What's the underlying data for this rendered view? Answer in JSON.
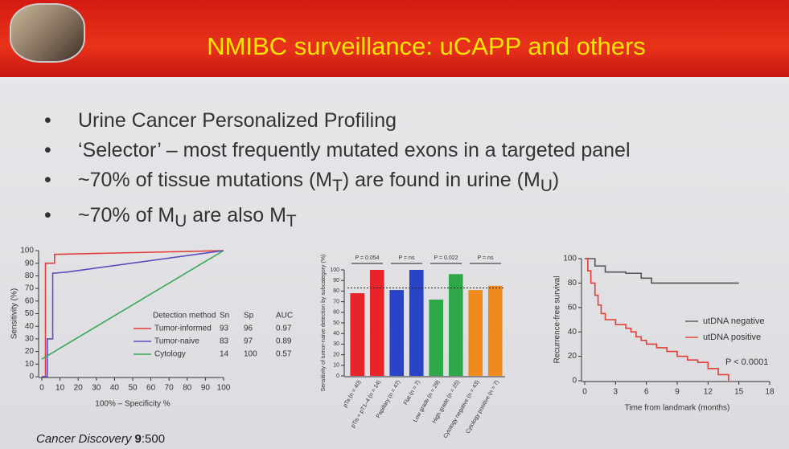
{
  "header": {
    "title": "NMIBC surveillance: uCAPP and others"
  },
  "bullets": [
    [
      "Urine Cancer Personalized Profiling"
    ],
    [
      "‘Selector’ – most frequently mutated exons in a targeted panel"
    ],
    [
      "~70% of tissue mutations (M",
      {
        "sub": "T"
      },
      ") are found in urine (M",
      {
        "sub": "U"
      },
      ")"
    ],
    [
      "~70% of M",
      {
        "sub": "U"
      },
      " are also M",
      {
        "sub": "T"
      }
    ]
  ],
  "footer": {
    "journal": "Cancer Discovery",
    "volume": "9",
    "page": ":500"
  },
  "chart_data": [
    {
      "type": "line",
      "xlabel": "100% – Specificity %",
      "ylabel": "Sensitivity (%)",
      "xlim": [
        0,
        100
      ],
      "ylim": [
        0,
        100
      ],
      "xticks": [
        0,
        10,
        20,
        30,
        40,
        50,
        60,
        70,
        80,
        90,
        100
      ],
      "yticks": [
        0,
        10,
        20,
        30,
        40,
        50,
        60,
        70,
        80,
        90,
        100
      ],
      "legend_title": "Detection method",
      "columns": [
        "Sn",
        "Sp",
        "AUC"
      ],
      "legend": "lower right",
      "series": [
        {
          "name": "Tumor-informed",
          "color": "#e0403a",
          "x": [
            0,
            2,
            2,
            7,
            7,
            100
          ],
          "values": [
            0,
            0,
            90,
            90,
            97,
            100
          ],
          "sn": 93,
          "sp": 96,
          "auc": 0.97
        },
        {
          "name": "Tumor-naive",
          "color": "#5a4fc0",
          "x": [
            0,
            3,
            3,
            6,
            6,
            14,
            100
          ],
          "values": [
            0,
            0,
            30,
            30,
            82,
            83,
            100
          ],
          "sn": 83,
          "sp": 97,
          "auc": 0.89
        },
        {
          "name": "Cytology",
          "color": "#3aa65a",
          "x": [
            0,
            100
          ],
          "values": [
            14,
            100
          ],
          "sn": 14,
          "sp": 100,
          "auc": 0.57
        }
      ]
    },
    {
      "type": "bar",
      "ylabel": "Sensitivity of tumor-naive detection by subcategory (%)",
      "ylim": [
        0,
        100
      ],
      "yticks": [
        0,
        10,
        20,
        30,
        40,
        50,
        60,
        70,
        80,
        90,
        100
      ],
      "reference_line": 83,
      "categories": [
        "pTa (n = 40)",
        "pTis + pT1–4 (n = 14)",
        "Papillary (n = 47)",
        "Flat (n = 7)",
        "Low grade (n = 29)",
        "High grade (n = 25)",
        "Cytology negative (n = 43)",
        "Cytology positive (n = 7)"
      ],
      "values": [
        78,
        100,
        81,
        100,
        72,
        96,
        81,
        85
      ],
      "colors": [
        "#e8242b",
        "#e8242b",
        "#2a44c8",
        "#2a44c8",
        "#2fa84a",
        "#2fa84a",
        "#f08a1c",
        "#f08a1c"
      ],
      "annotations": [
        "P = 0.054",
        "P = ns",
        "P = 0.022",
        "P = ns"
      ]
    },
    {
      "type": "line",
      "xlabel": "Time from landmark (months)",
      "ylabel": "Recurrence-free survival",
      "xlim": [
        0,
        18
      ],
      "ylim": [
        0,
        100
      ],
      "xticks": [
        0,
        3,
        6,
        9,
        12,
        15,
        18
      ],
      "yticks": [
        0,
        20,
        40,
        60,
        80,
        100
      ],
      "annotation": "P < 0.0001",
      "legend": "center right",
      "series": [
        {
          "name": "utDNA negative",
          "color": "#555555",
          "x": [
            0,
            1,
            1,
            2,
            2,
            4,
            4,
            5.5,
            5.5,
            6.5,
            6.5,
            15
          ],
          "values": [
            100,
            100,
            94,
            94,
            89,
            89,
            88,
            88,
            84,
            84,
            80,
            80
          ]
        },
        {
          "name": "utDNA positive",
          "color": "#e0403a",
          "x": [
            0,
            0.3,
            0.3,
            0.6,
            0.6,
            1,
            1,
            1.3,
            1.3,
            1.6,
            1.6,
            2,
            2,
            3,
            3,
            4,
            4,
            4.5,
            4.5,
            5,
            5,
            5.5,
            5.5,
            6,
            6,
            7,
            7,
            8,
            8,
            9,
            9,
            10,
            10,
            11,
            11,
            12,
            12,
            13,
            13,
            14,
            14
          ],
          "values": [
            100,
            100,
            90,
            90,
            80,
            80,
            70,
            70,
            62,
            62,
            55,
            55,
            50,
            50,
            46,
            46,
            43,
            43,
            40,
            40,
            36,
            36,
            33,
            33,
            30,
            30,
            27,
            27,
            24,
            24,
            20,
            20,
            17,
            17,
            15,
            15,
            10,
            10,
            5,
            5,
            0
          ]
        }
      ]
    }
  ]
}
